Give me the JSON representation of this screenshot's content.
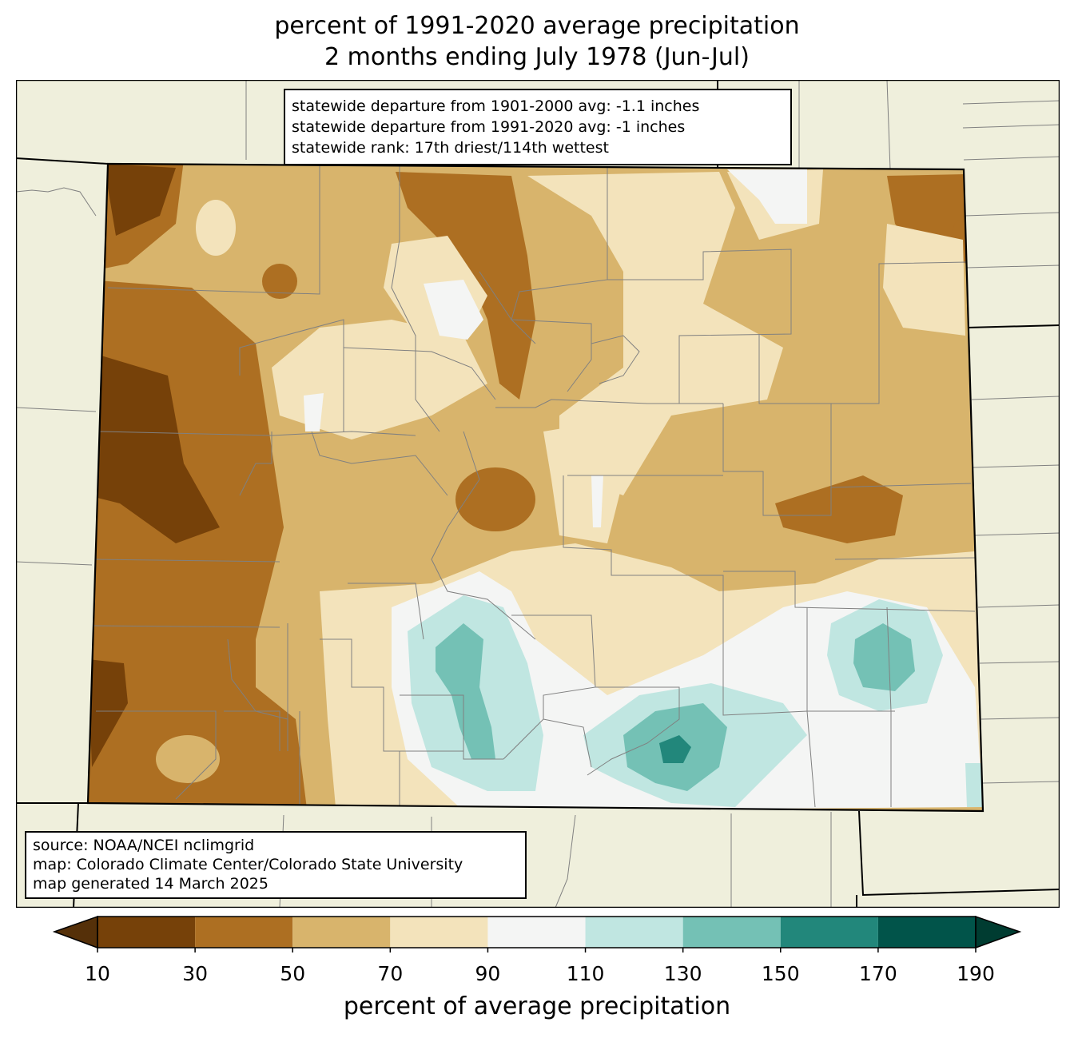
{
  "title": {
    "line1": "percent of 1991-2020 average precipitation",
    "line2": "2 months ending July 1978 (Jun-Jul)"
  },
  "stats": {
    "line1": "statewide departure from 1901-2000 avg: -1.1 inches",
    "line2": "statewide departure from 1991-2020 avg: -1 inches",
    "line3": "statewide rank: 17th driest/114th wettest"
  },
  "source": {
    "line1": "source: NOAA/NCEI nclimgrid",
    "line2": "map: Colorado Climate Center/Colorado State University",
    "line3": "map generated 14 March 2025"
  },
  "colorbar": {
    "label": "percent of average precipitation",
    "ticks": [
      "10",
      "30",
      "50",
      "70",
      "90",
      "110",
      "130",
      "150",
      "170",
      "190"
    ],
    "bins": [
      {
        "from": 10,
        "to": 30,
        "color": "#764109"
      },
      {
        "from": 30,
        "to": 50,
        "color": "#ad6f22"
      },
      {
        "from": 50,
        "to": 70,
        "color": "#d8b46c"
      },
      {
        "from": 70,
        "to": 90,
        "color": "#f3e3bb"
      },
      {
        "from": 90,
        "to": 110,
        "color": "#f4f5f4"
      },
      {
        "from": 110,
        "to": 130,
        "color": "#c0e6e1"
      },
      {
        "from": 130,
        "to": 150,
        "color": "#74c1b5"
      },
      {
        "from": 150,
        "to": 170,
        "color": "#22877b"
      },
      {
        "from": 170,
        "to": 190,
        "color": "#01544a"
      }
    ],
    "under_color": "#553009",
    "over_color": "#003c31"
  },
  "map_colors": {
    "land": "#efefdc",
    "county_lines": "#808080",
    "state_lines": "#000000"
  }
}
